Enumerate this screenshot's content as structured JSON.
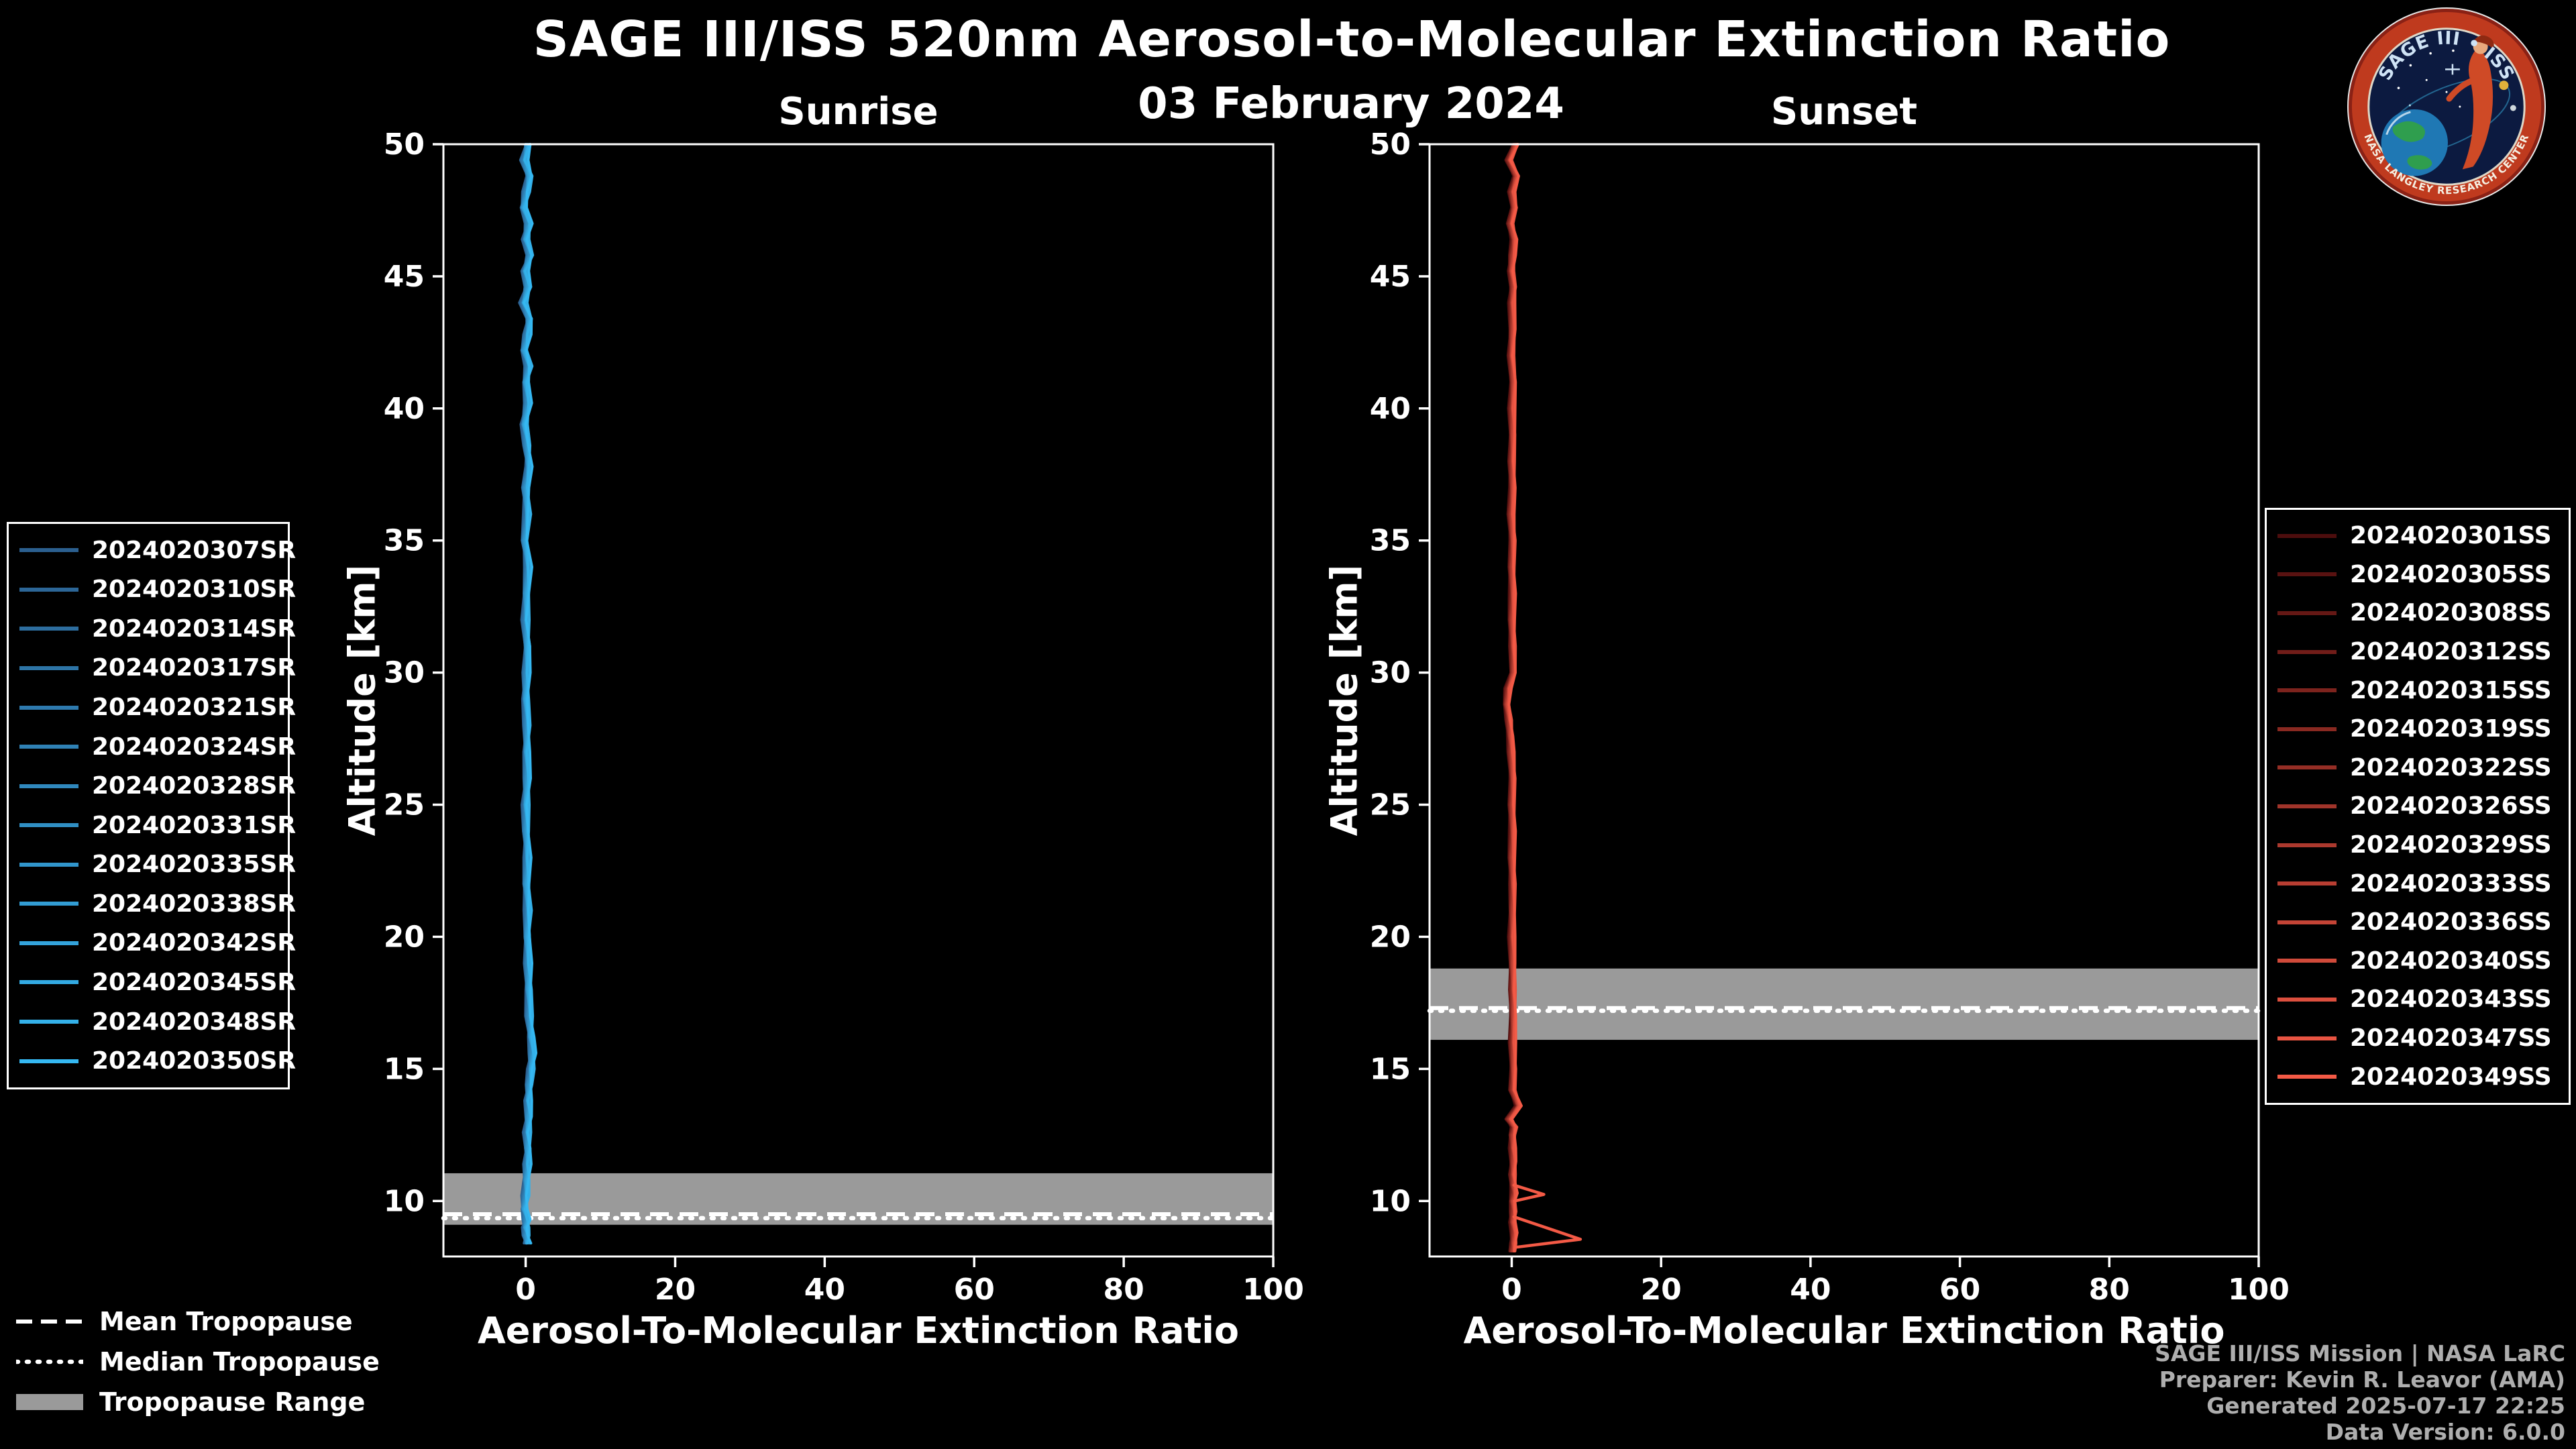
{
  "title": "SAGE III/ISS 520nm Aerosol-to-Molecular Extinction Ratio",
  "date": "03 February 2024",
  "logo": {
    "title": "SAGE III • ISS",
    "banner": "NASA LANGLEY RESEARCH CENTER"
  },
  "footer": {
    "line1": "SAGE III/ISS Mission | NASA LaRC",
    "line2": "Preparer: Kevin R. Leavor (AMA)",
    "line3": "Generated 2025-07-17 22:25",
    "line4": "Data Version: 6.0.0"
  },
  "colors": {
    "background": "#000000",
    "foreground": "#ffffff",
    "tropopause_band": "#9a9a9a",
    "footer_text": "#aeaeae",
    "sunrise_bright": "#35b8f2",
    "sunset_bright": "#f45a46"
  },
  "tropopause_legend": [
    {
      "label": "Mean Tropopause",
      "style": "dashed"
    },
    {
      "label": "Median Tropopause",
      "style": "dotted"
    },
    {
      "label": "Tropopause Range",
      "style": "band"
    }
  ],
  "chart_data": [
    {
      "type": "line",
      "panel": "sunrise",
      "title": "Sunrise",
      "xlabel": "Aerosol-To-Molecular Extinction Ratio",
      "ylabel": "Altitude [km]",
      "xlim": [
        -11,
        100
      ],
      "ylim": [
        7.9,
        50
      ],
      "xticks": [
        0,
        20,
        40,
        60,
        80,
        100
      ],
      "yticks": [
        10,
        15,
        20,
        25,
        30,
        35,
        40,
        45,
        50
      ],
      "grid": false,
      "legend_position": "outside-left",
      "tropopause": {
        "mean_km": 9.5,
        "median_km": 9.35,
        "range_km": [
          9.1,
          11.05
        ]
      },
      "series": [
        {
          "name": "2024020307SR",
          "color": "#2b5f8f"
        },
        {
          "name": "2024020310SR",
          "color": "#2c6697"
        },
        {
          "name": "2024020314SR",
          "color": "#2d6d9e"
        },
        {
          "name": "2024020317SR",
          "color": "#2d74a6"
        },
        {
          "name": "2024020321SR",
          "color": "#2e7aae"
        },
        {
          "name": "2024020324SR",
          "color": "#2f81b5"
        },
        {
          "name": "2024020328SR",
          "color": "#3088bd"
        },
        {
          "name": "2024020331SR",
          "color": "#308fc4"
        },
        {
          "name": "2024020335SR",
          "color": "#3196cc"
        },
        {
          "name": "2024020338SR",
          "color": "#329dd4"
        },
        {
          "name": "2024020342SR",
          "color": "#33a3db"
        },
        {
          "name": "2024020345SR",
          "color": "#33aae3"
        },
        {
          "name": "2024020348SR",
          "color": "#34b1ea"
        },
        {
          "name": "2024020350SR",
          "color": "#35b8f2"
        }
      ],
      "mean_profile": {
        "altitude_km": [
          50,
          49.4,
          48.8,
          48.2,
          47.6,
          47,
          46.4,
          45.8,
          45.2,
          44.6,
          44,
          43.4,
          42.8,
          42.2,
          41.6,
          41,
          40.2,
          39.4,
          38.6,
          37.8,
          37,
          36,
          35,
          34,
          33,
          32,
          31,
          30,
          29,
          28,
          27,
          26,
          25,
          24,
          23,
          22,
          21,
          20,
          19,
          18,
          17,
          16.2,
          15.6,
          15,
          14.4,
          13.8,
          13.2,
          12.6,
          12,
          11.4,
          10.8,
          10.2,
          9.7,
          9.3,
          9,
          8.7,
          8.4
        ],
        "ratio": [
          0.3,
          -0.2,
          0.5,
          0.1,
          -0.3,
          0.4,
          0,
          0.6,
          -0.1,
          0.3,
          -0.3,
          0.5,
          0.2,
          -0.2,
          0.4,
          0,
          0.3,
          -0.2,
          0.2,
          0.4,
          0,
          0.2,
          -0.1,
          0.3,
          0.1,
          0,
          0.2,
          0.1,
          0,
          0.2,
          0.1,
          0.2,
          0,
          0.1,
          0.2,
          0.1,
          0.3,
          0.2,
          0.3,
          0.4,
          0.5,
          0.7,
          0.9,
          0.7,
          0.5,
          0.3,
          0.4,
          0.2,
          0.3,
          0.2,
          0.1,
          0,
          -0.2,
          0.1,
          0,
          0.1,
          0.2
        ]
      },
      "outliers": []
    },
    {
      "type": "line",
      "panel": "sunset",
      "title": "Sunset",
      "xlabel": "Aerosol-To-Molecular Extinction Ratio",
      "ylabel": "Altitude [km]",
      "xlim": [
        -11,
        100
      ],
      "ylim": [
        7.9,
        50
      ],
      "xticks": [
        0,
        20,
        40,
        60,
        80,
        100
      ],
      "yticks": [
        10,
        15,
        20,
        25,
        30,
        35,
        40,
        45,
        50
      ],
      "grid": false,
      "legend_position": "outside-right",
      "tropopause": {
        "mean_km": 17.3,
        "median_km": 17.2,
        "range_km": [
          16.1,
          18.8
        ]
      },
      "series": [
        {
          "name": "2024020301SS",
          "color": "#4d0d0d"
        },
        {
          "name": "2024020305SS",
          "color": "#591211"
        },
        {
          "name": "2024020308SS",
          "color": "#651815"
        },
        {
          "name": "2024020312SS",
          "color": "#711d19"
        },
        {
          "name": "2024020315SS",
          "color": "#7d231d"
        },
        {
          "name": "2024020319SS",
          "color": "#892921"
        },
        {
          "name": "2024020322SS",
          "color": "#952e25"
        },
        {
          "name": "2024020326SS",
          "color": "#a0342a"
        },
        {
          "name": "2024020329SS",
          "color": "#ac392e"
        },
        {
          "name": "2024020333SS",
          "color": "#b83e32"
        },
        {
          "name": "2024020336SS",
          "color": "#c44436"
        },
        {
          "name": "2024020340SS",
          "color": "#d04a3a"
        },
        {
          "name": "2024020343SS",
          "color": "#dc4f3e"
        },
        {
          "name": "2024020347SS",
          "color": "#e85442"
        },
        {
          "name": "2024020349SS",
          "color": "#f45a46"
        }
      ],
      "mean_profile": {
        "altitude_km": [
          50,
          49.4,
          48.8,
          48.2,
          47.6,
          47,
          46.4,
          45.8,
          45.2,
          44.6,
          44,
          43,
          42,
          41,
          40,
          39,
          38,
          37,
          36,
          35,
          34,
          33,
          32,
          31,
          30,
          29.4,
          28.8,
          28.2,
          27.6,
          27,
          26,
          25,
          24,
          23,
          22,
          21,
          20,
          19,
          18,
          17,
          16,
          15,
          14.2,
          13.6,
          13.1,
          12.8,
          12.5,
          12,
          11.5,
          11,
          10.6,
          10.3,
          10,
          9.6,
          9.2,
          8.8,
          8.4,
          8.1
        ],
        "ratio": [
          0.5,
          -0.4,
          0.6,
          0,
          0.3,
          -0.2,
          0.3,
          0.1,
          -0.1,
          0.2,
          0,
          0.1,
          -0.1,
          0.2,
          0,
          0.1,
          0,
          0.1,
          -0.1,
          0.1,
          0,
          0.1,
          0,
          0.1,
          0.2,
          -0.5,
          -0.7,
          -0.4,
          -0.2,
          -0.1,
          0.1,
          0,
          0.1,
          0,
          0.1,
          0.1,
          0,
          0.1,
          0.1,
          0.2,
          0.1,
          0.2,
          0.1,
          0.9,
          -0.4,
          0.3,
          0.1,
          0.1,
          0.2,
          0.1,
          0.2,
          0.3,
          0.1,
          0.2,
          0.1,
          0.3,
          0.2,
          0.1
        ]
      },
      "outliers": [
        {
          "altitude_km": [
            10.6,
            10.25,
            10.0
          ],
          "ratio": [
            0.3,
            4.3,
            0.4
          ]
        },
        {
          "altitude_km": [
            9.4,
            8.55,
            8.25
          ],
          "ratio": [
            0.3,
            9.2,
            0.6
          ]
        }
      ]
    }
  ]
}
